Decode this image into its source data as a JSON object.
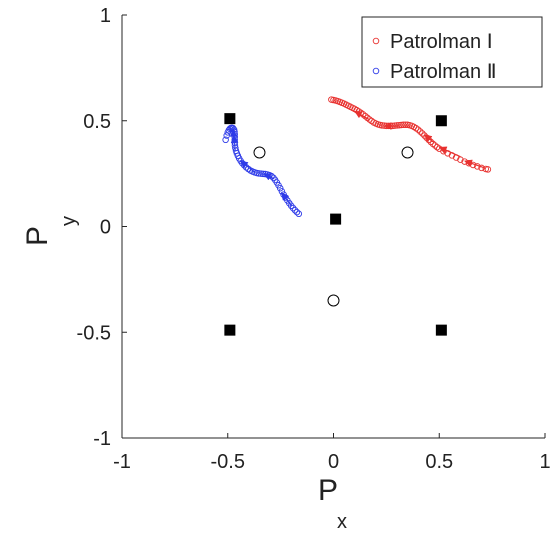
{
  "chart_data": {
    "type": "scatter",
    "xlim": [
      -1,
      1
    ],
    "ylim": [
      -1,
      1
    ],
    "xticks": [
      -1,
      -0.5,
      0,
      0.5,
      1
    ],
    "yticks": [
      -1,
      -0.5,
      0,
      0.5,
      1
    ],
    "xlabel": "P",
    "xlabel_sub": "x",
    "ylabel": "P",
    "ylabel_sub": "y",
    "grid": false,
    "legend_position": "top-right",
    "colors": {
      "series1": "#e8312f",
      "series2": "#2e3be8",
      "markers": "#000000"
    },
    "series": [
      {
        "name": "Patrolman Ⅰ",
        "marker": "open-circle",
        "points": [
          [
            -0.01,
            0.6
          ],
          [
            0.0,
            0.598
          ],
          [
            0.01,
            0.596
          ],
          [
            0.02,
            0.593
          ],
          [
            0.03,
            0.589
          ],
          [
            0.04,
            0.585
          ],
          [
            0.05,
            0.581
          ],
          [
            0.06,
            0.576
          ],
          [
            0.07,
            0.571
          ],
          [
            0.08,
            0.566
          ],
          [
            0.09,
            0.561
          ],
          [
            0.1,
            0.556
          ],
          [
            0.11,
            0.55
          ],
          [
            0.12,
            0.544
          ],
          [
            0.13,
            0.537
          ],
          [
            0.14,
            0.53
          ],
          [
            0.15,
            0.522
          ],
          [
            0.16,
            0.514
          ],
          [
            0.17,
            0.506
          ],
          [
            0.18,
            0.499
          ],
          [
            0.19,
            0.492
          ],
          [
            0.2,
            0.487
          ],
          [
            0.21,
            0.483
          ],
          [
            0.22,
            0.48
          ],
          [
            0.23,
            0.478
          ],
          [
            0.24,
            0.477
          ],
          [
            0.25,
            0.476
          ],
          [
            0.26,
            0.476
          ],
          [
            0.27,
            0.476
          ],
          [
            0.28,
            0.476
          ],
          [
            0.29,
            0.477
          ],
          [
            0.3,
            0.478
          ],
          [
            0.31,
            0.479
          ],
          [
            0.32,
            0.48
          ],
          [
            0.33,
            0.481
          ],
          [
            0.34,
            0.481
          ],
          [
            0.35,
            0.481
          ],
          [
            0.36,
            0.479
          ],
          [
            0.37,
            0.476
          ],
          [
            0.38,
            0.471
          ],
          [
            0.39,
            0.465
          ],
          [
            0.4,
            0.458
          ],
          [
            0.41,
            0.449
          ],
          [
            0.42,
            0.44
          ],
          [
            0.43,
            0.43
          ],
          [
            0.44,
            0.42
          ],
          [
            0.45,
            0.41
          ],
          [
            0.46,
            0.4
          ],
          [
            0.47,
            0.391
          ],
          [
            0.48,
            0.383
          ],
          [
            0.49,
            0.375
          ],
          [
            0.5,
            0.368
          ],
          [
            0.52,
            0.356
          ],
          [
            0.54,
            0.346
          ],
          [
            0.56,
            0.336
          ],
          [
            0.58,
            0.326
          ],
          [
            0.6,
            0.316
          ],
          [
            0.62,
            0.307
          ],
          [
            0.64,
            0.299
          ],
          [
            0.66,
            0.291
          ],
          [
            0.68,
            0.284
          ],
          [
            0.7,
            0.277
          ],
          [
            0.72,
            0.272
          ],
          [
            0.73,
            0.27
          ]
        ],
        "arrows": [
          [
            0.72,
            0.275,
            0.62,
            0.31
          ],
          [
            0.6,
            0.33,
            0.5,
            0.375
          ],
          [
            0.47,
            0.4,
            0.43,
            0.435
          ],
          [
            0.31,
            0.475,
            0.24,
            0.475
          ],
          [
            0.17,
            0.505,
            0.1,
            0.545
          ]
        ]
      },
      {
        "name": "Patrolman Ⅱ",
        "marker": "open-circle",
        "points": [
          [
            -0.51,
            0.41
          ],
          [
            -0.505,
            0.43
          ],
          [
            -0.5,
            0.445
          ],
          [
            -0.495,
            0.455
          ],
          [
            -0.49,
            0.462
          ],
          [
            -0.485,
            0.466
          ],
          [
            -0.48,
            0.467
          ],
          [
            -0.475,
            0.465
          ],
          [
            -0.47,
            0.458
          ],
          [
            -0.468,
            0.448
          ],
          [
            -0.467,
            0.436
          ],
          [
            -0.467,
            0.423
          ],
          [
            -0.467,
            0.41
          ],
          [
            -0.467,
            0.397
          ],
          [
            -0.466,
            0.384
          ],
          [
            -0.464,
            0.371
          ],
          [
            -0.461,
            0.358
          ],
          [
            -0.457,
            0.346
          ],
          [
            -0.452,
            0.334
          ],
          [
            -0.446,
            0.322
          ],
          [
            -0.439,
            0.31
          ],
          [
            -0.431,
            0.299
          ],
          [
            -0.422,
            0.289
          ],
          [
            -0.413,
            0.28
          ],
          [
            -0.403,
            0.272
          ],
          [
            -0.393,
            0.265
          ],
          [
            -0.383,
            0.26
          ],
          [
            -0.373,
            0.256
          ],
          [
            -0.363,
            0.253
          ],
          [
            -0.353,
            0.251
          ],
          [
            -0.343,
            0.25
          ],
          [
            -0.333,
            0.249
          ],
          [
            -0.323,
            0.248
          ],
          [
            -0.313,
            0.246
          ],
          [
            -0.303,
            0.243
          ],
          [
            -0.293,
            0.238
          ],
          [
            -0.284,
            0.23
          ],
          [
            -0.276,
            0.22
          ],
          [
            -0.268,
            0.208
          ],
          [
            -0.26,
            0.195
          ],
          [
            -0.252,
            0.181
          ],
          [
            -0.244,
            0.166
          ],
          [
            -0.236,
            0.151
          ],
          [
            -0.227,
            0.137
          ],
          [
            -0.218,
            0.123
          ],
          [
            -0.209,
            0.11
          ],
          [
            -0.2,
            0.098
          ],
          [
            -0.191,
            0.087
          ],
          [
            -0.182,
            0.077
          ],
          [
            -0.173,
            0.068
          ],
          [
            -0.164,
            0.06
          ]
        ],
        "arrows": [
          [
            -0.2,
            0.1,
            -0.245,
            0.16
          ],
          [
            -0.28,
            0.225,
            -0.33,
            0.25
          ],
          [
            -0.37,
            0.255,
            -0.44,
            0.31
          ],
          [
            -0.47,
            0.4,
            -0.475,
            0.46
          ],
          [
            -0.465,
            0.36,
            -0.47,
            0.43
          ]
        ]
      }
    ],
    "filled_squares": [
      [
        -0.49,
        0.51
      ],
      [
        0.51,
        0.5
      ],
      [
        0.01,
        0.035
      ],
      [
        -0.49,
        -0.49
      ],
      [
        0.51,
        -0.49
      ]
    ],
    "open_circles": [
      [
        -0.35,
        0.35
      ],
      [
        0.35,
        0.35
      ],
      [
        0.0,
        -0.35
      ]
    ]
  }
}
